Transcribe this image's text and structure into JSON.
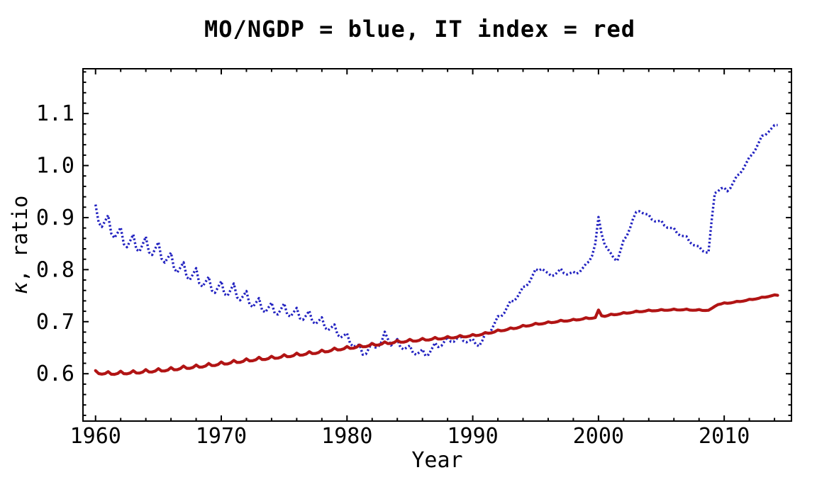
{
  "chart": {
    "title": "MO/NGDP = blue, IT index = red",
    "xlabel": "Year",
    "ylabel": "κ, ratio",
    "ylabel_symbol": "κ",
    "ylabel_rest": ", ratio",
    "colors": {
      "blue_series": "#2121c0",
      "red_series": "#b11414",
      "frame": "#000000",
      "text": "#000000",
      "background": "#ffffff"
    }
  },
  "chart_data": {
    "type": "line",
    "title": "MO/NGDP = blue, IT index = red",
    "xlabel": "Year",
    "ylabel": "κ, ratio",
    "xlim": [
      1959.0,
      2015.35
    ],
    "ylim": [
      0.509,
      1.186
    ],
    "grid": false,
    "legend_position": "encoded-in-title",
    "x_major_ticks": [
      1960,
      1970,
      1980,
      1990,
      2000,
      2010
    ],
    "x_major_labels": [
      "1960",
      "1970",
      "1980",
      "1990",
      "2000",
      "2010"
    ],
    "x_minor_step": 2,
    "x_minor_range": [
      1960,
      2014
    ],
    "y_major_ticks": [
      0.6,
      0.7,
      0.8,
      0.9,
      1.0,
      1.1
    ],
    "y_major_labels": [
      "0.6",
      "0.7",
      "0.8",
      "0.9",
      "1.0",
      "1.1"
    ],
    "y_minor_step": 0.02,
    "y_minor_range": [
      0.52,
      1.18
    ],
    "sampling": {
      "start": 1960.0,
      "end": 2014.25,
      "step": 0.25
    },
    "series": [
      {
        "name": "MO/NGDP",
        "legend_color_word": "blue",
        "color": "#2121c0",
        "line_style": "dotted",
        "frequency": "quarterly",
        "trend_points": [
          [
            1960.0,
            0.905
          ],
          [
            1961,
            0.885
          ],
          [
            1962,
            0.862
          ],
          [
            1963,
            0.849
          ],
          [
            1964,
            0.845
          ],
          [
            1965,
            0.835
          ],
          [
            1966,
            0.815
          ],
          [
            1967,
            0.797
          ],
          [
            1968,
            0.786
          ],
          [
            1969,
            0.77
          ],
          [
            1970,
            0.762
          ],
          [
            1971,
            0.758
          ],
          [
            1972,
            0.744
          ],
          [
            1973,
            0.731
          ],
          [
            1974,
            0.723
          ],
          [
            1975,
            0.722
          ],
          [
            1976,
            0.714
          ],
          [
            1977,
            0.709
          ],
          [
            1978,
            0.697
          ],
          [
            1979,
            0.684
          ],
          [
            1980,
            0.668
          ],
          [
            1980.7,
            0.654
          ],
          [
            1981.3,
            0.64
          ],
          [
            1982,
            0.652
          ],
          [
            1982.9,
            0.662
          ],
          [
            1983.1,
            0.682
          ],
          [
            1983.4,
            0.66
          ],
          [
            1984,
            0.658
          ],
          [
            1985,
            0.646
          ],
          [
            1985.7,
            0.64
          ],
          [
            1986.3,
            0.638
          ],
          [
            1987,
            0.652
          ],
          [
            1988,
            0.664
          ],
          [
            1989,
            0.668
          ],
          [
            1990,
            0.661
          ],
          [
            1990.6,
            0.656
          ],
          [
            1991,
            0.672
          ],
          [
            1992,
            0.705
          ],
          [
            1993,
            0.735
          ],
          [
            1994,
            0.762
          ],
          [
            1995,
            0.796
          ],
          [
            1995.5,
            0.805
          ],
          [
            1996,
            0.788
          ],
          [
            1997,
            0.797
          ],
          [
            1998,
            0.791
          ],
          [
            1999,
            0.806
          ],
          [
            1999.7,
            0.84
          ],
          [
            2000.0,
            0.896
          ],
          [
            2000.4,
            0.856
          ],
          [
            2001,
            0.826
          ],
          [
            2001.5,
            0.82
          ],
          [
            2002,
            0.852
          ],
          [
            2002.8,
            0.9
          ],
          [
            2003.3,
            0.916
          ],
          [
            2004,
            0.901
          ],
          [
            2005,
            0.89
          ],
          [
            2006,
            0.876
          ],
          [
            2007,
            0.86
          ],
          [
            2007.5,
            0.85
          ],
          [
            2008,
            0.841
          ],
          [
            2008.8,
            0.832
          ],
          [
            2009.2,
            0.948
          ],
          [
            2009.7,
            0.956
          ],
          [
            2010.3,
            0.952
          ],
          [
            2011,
            0.977
          ],
          [
            2012,
            1.013
          ],
          [
            2013,
            1.054
          ],
          [
            2013.6,
            1.068
          ],
          [
            2014.3,
            1.08
          ]
        ],
        "seasonal_pattern": [
          1.0,
          -0.5,
          -0.65,
          0.15
        ],
        "seasonal_amplitude": [
          [
            1960,
            0.02
          ],
          [
            1970,
            0.016
          ],
          [
            1977,
            0.012
          ],
          [
            1981,
            0.009
          ],
          [
            1986,
            0.008
          ],
          [
            1990,
            0.006
          ],
          [
            1994,
            0.005
          ],
          [
            2000,
            0.005
          ],
          [
            2006,
            0.004
          ],
          [
            2014.3,
            0.003
          ]
        ]
      },
      {
        "name": "IT index",
        "legend_color_word": "red",
        "color": "#b11414",
        "line_style": "solid",
        "frequency": "quarterly",
        "trend_points": [
          [
            1960.0,
            0.602
          ],
          [
            1961,
            0.6
          ],
          [
            1962,
            0.601
          ],
          [
            1963,
            0.602
          ],
          [
            1964,
            0.604
          ],
          [
            1965,
            0.606
          ],
          [
            1966,
            0.608
          ],
          [
            1967,
            0.611
          ],
          [
            1968,
            0.613
          ],
          [
            1969,
            0.616
          ],
          [
            1970,
            0.619
          ],
          [
            1971,
            0.622
          ],
          [
            1972,
            0.625
          ],
          [
            1973,
            0.628
          ],
          [
            1974,
            0.63
          ],
          [
            1975,
            0.633
          ],
          [
            1976,
            0.636
          ],
          [
            1977,
            0.639
          ],
          [
            1978,
            0.642
          ],
          [
            1979,
            0.646
          ],
          [
            1980,
            0.649
          ],
          [
            1981,
            0.652
          ],
          [
            1982,
            0.655
          ],
          [
            1983,
            0.658
          ],
          [
            1984,
            0.661
          ],
          [
            1985,
            0.663
          ],
          [
            1986,
            0.665
          ],
          [
            1987,
            0.667
          ],
          [
            1988,
            0.669
          ],
          [
            1989,
            0.671
          ],
          [
            1990,
            0.673
          ],
          [
            1991,
            0.677
          ],
          [
            1992,
            0.682
          ],
          [
            1993,
            0.686
          ],
          [
            1994,
            0.691
          ],
          [
            1995,
            0.695
          ],
          [
            1996,
            0.698
          ],
          [
            1997,
            0.701
          ],
          [
            1998,
            0.703
          ],
          [
            1999,
            0.706
          ],
          [
            1999.8,
            0.708
          ],
          [
            2000.0,
            0.721
          ],
          [
            2000.3,
            0.71
          ],
          [
            2001,
            0.713
          ],
          [
            2002,
            0.716
          ],
          [
            2003,
            0.719
          ],
          [
            2004,
            0.721
          ],
          [
            2005,
            0.722
          ],
          [
            2006,
            0.723
          ],
          [
            2007,
            0.723
          ],
          [
            2008,
            0.722
          ],
          [
            2008.9,
            0.722
          ],
          [
            2009.4,
            0.733
          ],
          [
            2010,
            0.735
          ],
          [
            2011,
            0.738
          ],
          [
            2012,
            0.742
          ],
          [
            2013,
            0.746
          ],
          [
            2013.8,
            0.75
          ],
          [
            2014.3,
            0.751
          ]
        ],
        "seasonal_pattern": [
          1.0,
          -0.3,
          -0.45,
          -0.1
        ],
        "seasonal_amplitude": [
          [
            1960,
            0.004
          ],
          [
            1975,
            0.0035
          ],
          [
            1985,
            0.003
          ],
          [
            1992,
            0.002
          ],
          [
            2000,
            0.0015
          ],
          [
            2014.3,
            0.001
          ]
        ]
      }
    ]
  }
}
